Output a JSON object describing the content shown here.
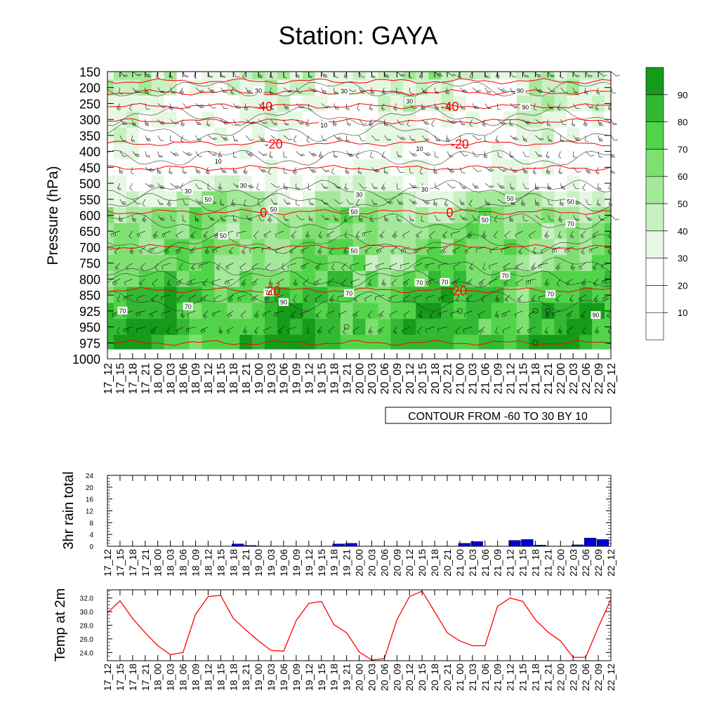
{
  "page": {
    "title": "Station: GAYA",
    "contour_note": "CONTOUR FROM -60 TO 30 BY 10"
  },
  "time_labels": [
    "17_12",
    "17_15",
    "17_18",
    "17_21",
    "18_00",
    "18_03",
    "18_06",
    "18_09",
    "18_12",
    "18_15",
    "18_18",
    "18_21",
    "19_00",
    "19_03",
    "19_06",
    "19_09",
    "19_12",
    "19_15",
    "19_18",
    "19_21",
    "20_00",
    "20_03",
    "20_06",
    "20_09",
    "20_12",
    "20_15",
    "20_18",
    "20_21",
    "21_00",
    "21_03",
    "21_06",
    "21_09",
    "21_12",
    "21_15",
    "21_18",
    "21_21",
    "22_00",
    "22_03",
    "22_06",
    "22_09",
    "22_12"
  ],
  "colors": {
    "rh_shades": [
      "#ffffff",
      "#ffffff",
      "#ffffff",
      "#e6f8e3",
      "#c8f0c2",
      "#a4e89a",
      "#7ee070",
      "#52d44a",
      "#32b832",
      "#159a1a"
    ],
    "temp_contour": "#ff0000",
    "rain_bar": "#0000dd",
    "temp_line": "#ff0000",
    "below_ground": "#ffffff"
  },
  "chart_data": [
    {
      "type": "heatmap",
      "title": "Station: GAYA",
      "ylabel": "Pressure (hPa)",
      "xlabel": "",
      "y_axis": "pressure",
      "pressure_levels": [
        150,
        200,
        250,
        300,
        350,
        400,
        450,
        500,
        550,
        600,
        650,
        700,
        750,
        800,
        850,
        925,
        950,
        975,
        1000
      ],
      "ylim": [
        150,
        1000
      ],
      "shading_variable": "relative humidity",
      "colorbar_ticks": [
        10,
        20,
        30,
        40,
        50,
        60,
        70,
        80,
        90
      ],
      "rh_profile_levels": [
        150,
        200,
        250,
        300,
        350,
        400,
        450,
        500,
        550,
        600,
        650,
        700,
        750,
        800,
        850,
        925,
        950,
        975
      ],
      "rh_profile": [
        42,
        38,
        34,
        30,
        26,
        22,
        24,
        32,
        46,
        58,
        60,
        64,
        64,
        72,
        76,
        80,
        82,
        85
      ],
      "temperature_contours": [
        {
          "label": "-40",
          "pressure": 258
        },
        {
          "label": "-20",
          "pressure": 375
        },
        {
          "label": "0",
          "pressure": 590
        },
        {
          "label": "20",
          "pressure": 835
        }
      ],
      "rh_contour_labels": [
        "30",
        "30",
        "30",
        "90",
        "90",
        "10",
        "10",
        "10",
        "30",
        "30",
        "30",
        "30",
        "50",
        "50",
        "50",
        "50",
        "50",
        "50",
        "70",
        "50",
        "50",
        "70",
        "70",
        "70",
        "70",
        "90",
        "70",
        "70",
        "70",
        "70",
        "90"
      ],
      "has_wind_barbs": true
    },
    {
      "type": "bar",
      "ylabel": "3hr rain total",
      "xlabel": "",
      "ylim": [
        0,
        24
      ],
      "y_ticks": [
        0,
        4,
        8,
        12,
        16,
        20,
        24
      ],
      "values": [
        0,
        0,
        0,
        0,
        0,
        0,
        0,
        0,
        0,
        0,
        0.8,
        0.3,
        0,
        0,
        0,
        0,
        0,
        0,
        0.8,
        1.0,
        0,
        0,
        0,
        0,
        0,
        0,
        0,
        0,
        1.0,
        1.6,
        0,
        0,
        2.0,
        2.3,
        0.4,
        0,
        0,
        0.5,
        2.8,
        2.3,
        0
      ]
    },
    {
      "type": "line",
      "ylabel": "Temp at 2m",
      "xlabel": "",
      "ylim": [
        22.8,
        33.2
      ],
      "y_ticks": [
        "24.0",
        "26.0",
        "28.0",
        "30.0",
        "32.0"
      ],
      "values": [
        29.8,
        31.6,
        29.0,
        26.9,
        25.0,
        23.7,
        24.0,
        29.6,
        32.2,
        32.4,
        29.0,
        27.3,
        25.7,
        24.3,
        24.2,
        28.7,
        31.2,
        31.5,
        28.1,
        26.9,
        24.1,
        22.9,
        23.1,
        28.8,
        32.2,
        33.0,
        30.0,
        26.9,
        25.7,
        25.0,
        25.0,
        30.8,
        32.0,
        31.5,
        28.8,
        27.0,
        25.7,
        23.3,
        23.3,
        27.7,
        31.8
      ]
    }
  ]
}
